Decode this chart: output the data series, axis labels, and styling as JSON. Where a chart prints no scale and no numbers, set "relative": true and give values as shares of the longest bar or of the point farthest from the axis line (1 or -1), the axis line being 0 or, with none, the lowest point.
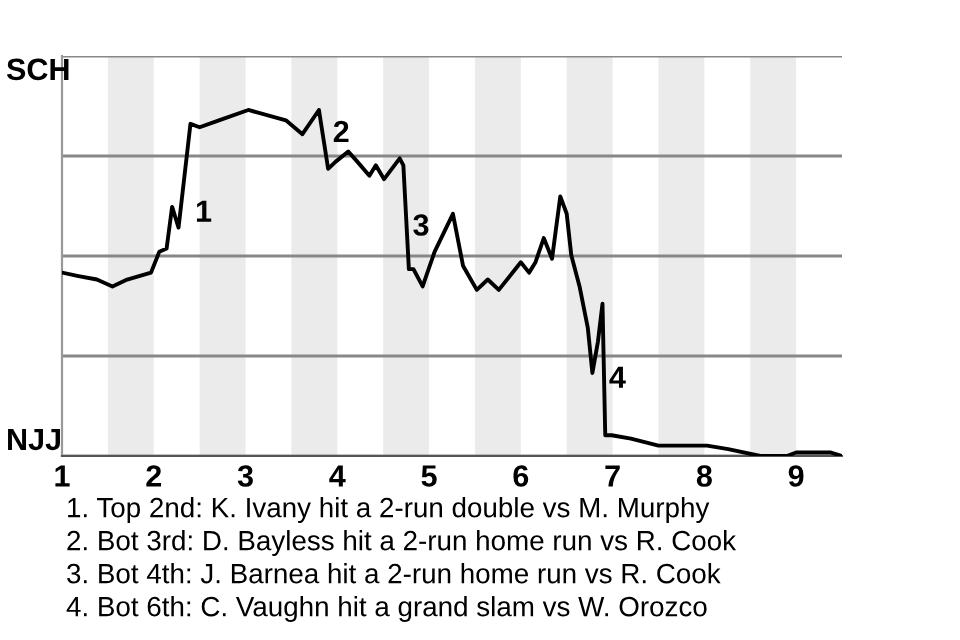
{
  "chart_data": {
    "type": "line",
    "relative": true,
    "x": [
      1,
      1.18,
      1.38,
      1.55,
      1.71,
      1.97,
      2.06,
      2.14,
      2.2,
      2.27,
      2.4,
      2.5,
      2.71,
      3.03,
      3.44,
      3.62,
      3.8,
      3.9,
      3.98,
      4.12,
      4.22,
      4.35,
      4.42,
      4.51,
      4.68,
      4.72,
      4.78,
      4.83,
      4.93,
      5.06,
      5.26,
      5.37,
      5.52,
      5.64,
      5.76,
      6,
      6.09,
      6.16,
      6.25,
      6.34,
      6.43,
      6.5,
      6.55,
      6.64,
      6.73,
      6.78,
      6.84,
      6.89,
      6.92,
      6.99,
      7.2,
      7.5,
      7.71,
      8.03,
      8.26,
      8.61,
      8.9,
      9,
      9.24,
      9.38,
      9.5
    ],
    "series": [
      {
        "color": "#000000",
        "values": [
          0.53,
          0.52,
          0.51,
          0.49,
          0.51,
          0.53,
          0.59,
          0.6,
          0.72,
          0.66,
          0.96,
          0.95,
          0.97,
          1,
          0.97,
          0.93,
          1,
          0.83,
          0.85,
          0.88,
          0.85,
          0.81,
          0.84,
          0.8,
          0.86,
          0.84,
          0.54,
          0.54,
          0.49,
          0.59,
          0.7,
          0.55,
          0.48,
          0.51,
          0.48,
          0.56,
          0.53,
          0.56,
          0.63,
          0.57,
          0.75,
          0.7,
          0.58,
          0.49,
          0.37,
          0.24,
          0.33,
          0.44,
          0.06,
          0.06,
          0.05,
          0.03,
          0.03,
          0.03,
          0.02,
          0,
          0,
          0.01,
          0.01,
          0.01,
          0
        ]
      }
    ],
    "xlim": [
      1,
      9.5
    ],
    "xticks": [
      1,
      2,
      3,
      4,
      5,
      6,
      7,
      8,
      9
    ],
    "grid": "y",
    "marker": "none",
    "line_style": "solid",
    "bands": [
      {
        "axis": "x",
        "from": 1.5,
        "to": 2,
        "color": "#ebebeb"
      },
      {
        "axis": "x",
        "from": 2.5,
        "to": 3,
        "color": "#ebebeb"
      },
      {
        "axis": "x",
        "from": 3.5,
        "to": 4,
        "color": "#ebebeb"
      },
      {
        "axis": "x",
        "from": 4.5,
        "to": 5,
        "color": "#ebebeb"
      },
      {
        "axis": "x",
        "from": 5.5,
        "to": 6,
        "color": "#ebebeb"
      },
      {
        "axis": "x",
        "from": 6.5,
        "to": 7,
        "color": "#ebebeb"
      },
      {
        "axis": "x",
        "from": 7.5,
        "to": 8,
        "color": "#ebebeb"
      },
      {
        "axis": "x",
        "from": 8.5,
        "to": 9,
        "color": "#ebebeb"
      }
    ],
    "annotations": [
      {
        "text": "1",
        "x": 2.45,
        "y": 0.7
      },
      {
        "text": "2",
        "x": 3.95,
        "y": 0.93
      },
      {
        "text": "3",
        "x": 4.82,
        "y": 0.66
      },
      {
        "text": "4",
        "x": 6.96,
        "y": 0.22
      },
      "SCH",
      "NJJ",
      "1. Top 2nd: K. Ivany hit a 2-run double vs M. Murphy",
      "2. Bot 3rd: D. Bayless hit a 2-run home run vs R. Cook",
      "3. Bot 4th: J. Barnea hit a 2-run home run vs R. Cook",
      "4. Bot 6th: C. Vaughn hit a grand slam vs W. Orozco"
    ]
  }
}
